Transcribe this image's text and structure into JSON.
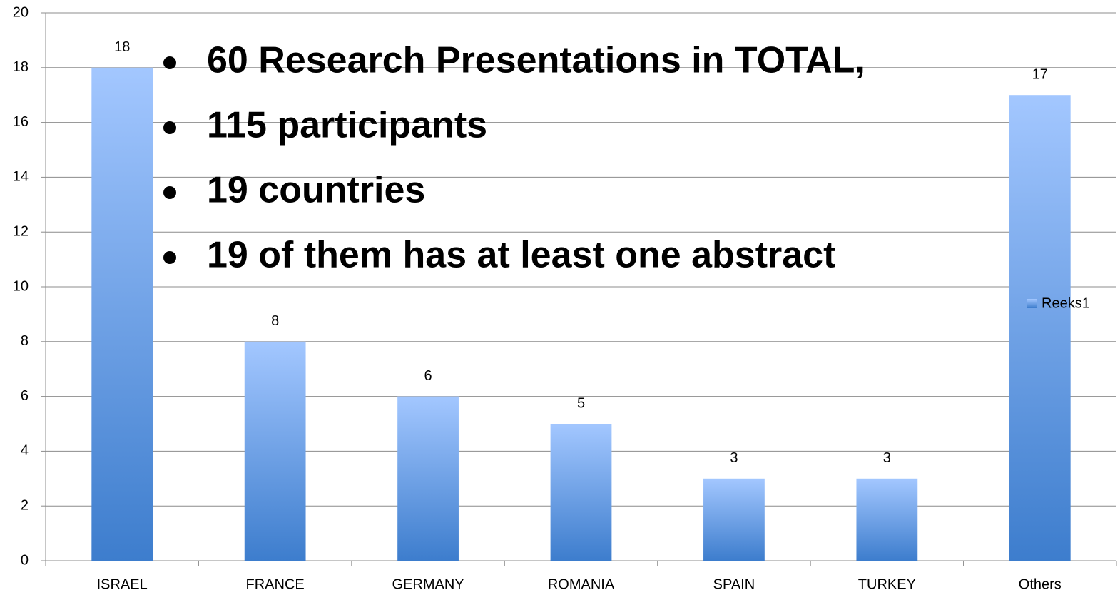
{
  "chart_data": {
    "type": "bar",
    "categories": [
      "ISRAEL",
      "FRANCE",
      "GERMANY",
      "ROMANIA",
      "SPAIN",
      "TURKEY",
      "Others"
    ],
    "series": [
      {
        "name": "Reeks1",
        "color": "#3d7dcd",
        "gradient": [
          "#a3c7ff",
          "#3d7dcd"
        ],
        "values": [
          18,
          8,
          6,
          5,
          3,
          3,
          17
        ]
      }
    ],
    "ylim": [
      0,
      20
    ],
    "yticks": [
      0,
      2,
      4,
      6,
      8,
      10,
      12,
      14,
      16,
      18,
      20
    ],
    "grid": true,
    "legend": "right",
    "annotations": [
      "60 Research Presentations in TOTAL,",
      "115 participants",
      "19 countries",
      "19 of them has at least one abstract"
    ]
  }
}
